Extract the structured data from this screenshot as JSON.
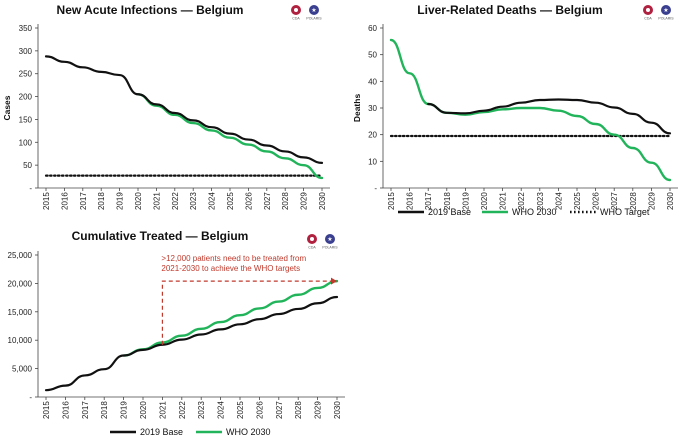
{
  "colors": {
    "base": "#111111",
    "who2030": "#22b45a",
    "target": "#111111",
    "annotation": "#c0392b",
    "axis": "#444444",
    "cda_logo": "#b0213f",
    "polaris_logo": "#3a3f8f"
  },
  "logo": {
    "left_label": "CDA",
    "right_label": "POLARIS",
    "icons": [
      "cda-logo-icon",
      "polaris-logo-icon"
    ]
  },
  "legend": {
    "base": "2019 Base",
    "who2030": "WHO 2030",
    "target": "WHO Target"
  },
  "chart_data": [
    {
      "id": "infections",
      "type": "line",
      "title": "New Acute Infections — Belgium",
      "xlabel": "",
      "ylabel": "Cases",
      "x": [
        "2015",
        "2016",
        "2017",
        "2018",
        "2019",
        "2020",
        "2021",
        "2022",
        "2023",
        "2024",
        "2025",
        "2026",
        "2027",
        "2028",
        "2029",
        "2030"
      ],
      "ylim": [
        0,
        350
      ],
      "yticks": [
        0,
        50,
        100,
        150,
        200,
        250,
        300,
        350
      ],
      "ytick_labels": [
        "-",
        "50",
        "100",
        "150",
        "200",
        "250",
        "300",
        "350"
      ],
      "series": [
        {
          "name": "2019 Base",
          "key": "base",
          "values": [
            288,
            276,
            264,
            254,
            247,
            205,
            183,
            164,
            148,
            133,
            119,
            106,
            93,
            80,
            67,
            55
          ]
        },
        {
          "name": "WHO 2030",
          "key": "who2030",
          "values": [
            null,
            null,
            null,
            null,
            null,
            205,
            180,
            160,
            142,
            126,
            110,
            95,
            80,
            65,
            50,
            22
          ]
        },
        {
          "name": "WHO Target",
          "key": "target",
          "dashed": true,
          "values": [
            27,
            27,
            27,
            27,
            27,
            27,
            27,
            27,
            27,
            27,
            27,
            27,
            27,
            27,
            27,
            27
          ]
        }
      ]
    },
    {
      "id": "deaths",
      "type": "line",
      "title": "Liver-Related Deaths — Belgium",
      "xlabel": "",
      "ylabel": "Deaths",
      "x": [
        "2015",
        "2016",
        "2017",
        "2018",
        "2019",
        "2020",
        "2021",
        "2022",
        "2023",
        "2024",
        "2025",
        "2026",
        "2027",
        "2028",
        "2029",
        "2030"
      ],
      "ylim": [
        0,
        60
      ],
      "yticks": [
        0,
        10,
        20,
        30,
        40,
        50,
        60
      ],
      "ytick_labels": [
        "-",
        "10",
        "20",
        "30",
        "40",
        "50",
        "60"
      ],
      "series": [
        {
          "name": "2019 Base",
          "key": "base",
          "values": [
            null,
            null,
            31.5,
            28.2,
            28.0,
            29.0,
            30.5,
            32.0,
            33.0,
            33.2,
            33.0,
            32.0,
            30.2,
            27.8,
            24.5,
            20.5
          ]
        },
        {
          "name": "WHO 2030",
          "key": "who2030",
          "values": [
            55.5,
            43.0,
            31.5,
            28.2,
            27.5,
            28.5,
            29.5,
            30.0,
            30.0,
            29.0,
            27.0,
            24.0,
            20.0,
            15.0,
            9.5,
            3.0
          ]
        },
        {
          "name": "WHO Target",
          "key": "target",
          "dashed": true,
          "values": [
            19.5,
            19.5,
            19.5,
            19.5,
            19.5,
            19.5,
            19.5,
            19.5,
            19.5,
            19.5,
            19.5,
            19.5,
            19.5,
            19.5,
            19.5,
            19.5
          ]
        }
      ]
    },
    {
      "id": "treated",
      "type": "line",
      "title": "Cumulative Treated — Belgium",
      "xlabel": "",
      "ylabel": "",
      "x": [
        "2015",
        "2016",
        "2017",
        "2018",
        "2019",
        "2020",
        "2021",
        "2022",
        "2023",
        "2024",
        "2025",
        "2026",
        "2027",
        "2028",
        "2029",
        "2030"
      ],
      "ylim": [
        0,
        25000
      ],
      "yticks": [
        0,
        5000,
        10000,
        15000,
        20000,
        25000
      ],
      "ytick_labels": [
        "-",
        "5,000",
        "10,000",
        "15,000",
        "20,000",
        "25,000"
      ],
      "annotation": ">12,000 patients need to be treated from 2021-2030 to achieve the WHO targets",
      "annotation_lines": [
        ">12,000 patients need to be treated from",
        "2021-2030 to achieve the WHO targets"
      ],
      "annotation_from_year": "2021",
      "annotation_value": 20400,
      "series": [
        {
          "name": "2019 Base",
          "key": "base",
          "values": [
            1200,
            2000,
            3800,
            4900,
            7300,
            8300,
            9200,
            10100,
            11000,
            11900,
            12800,
            13700,
            14600,
            15500,
            16500,
            17600
          ]
        },
        {
          "name": "WHO 2030",
          "key": "who2030",
          "values": [
            null,
            null,
            null,
            null,
            7300,
            8400,
            9600,
            10800,
            12000,
            13200,
            14400,
            15600,
            16800,
            18000,
            19200,
            20400
          ]
        }
      ]
    }
  ]
}
